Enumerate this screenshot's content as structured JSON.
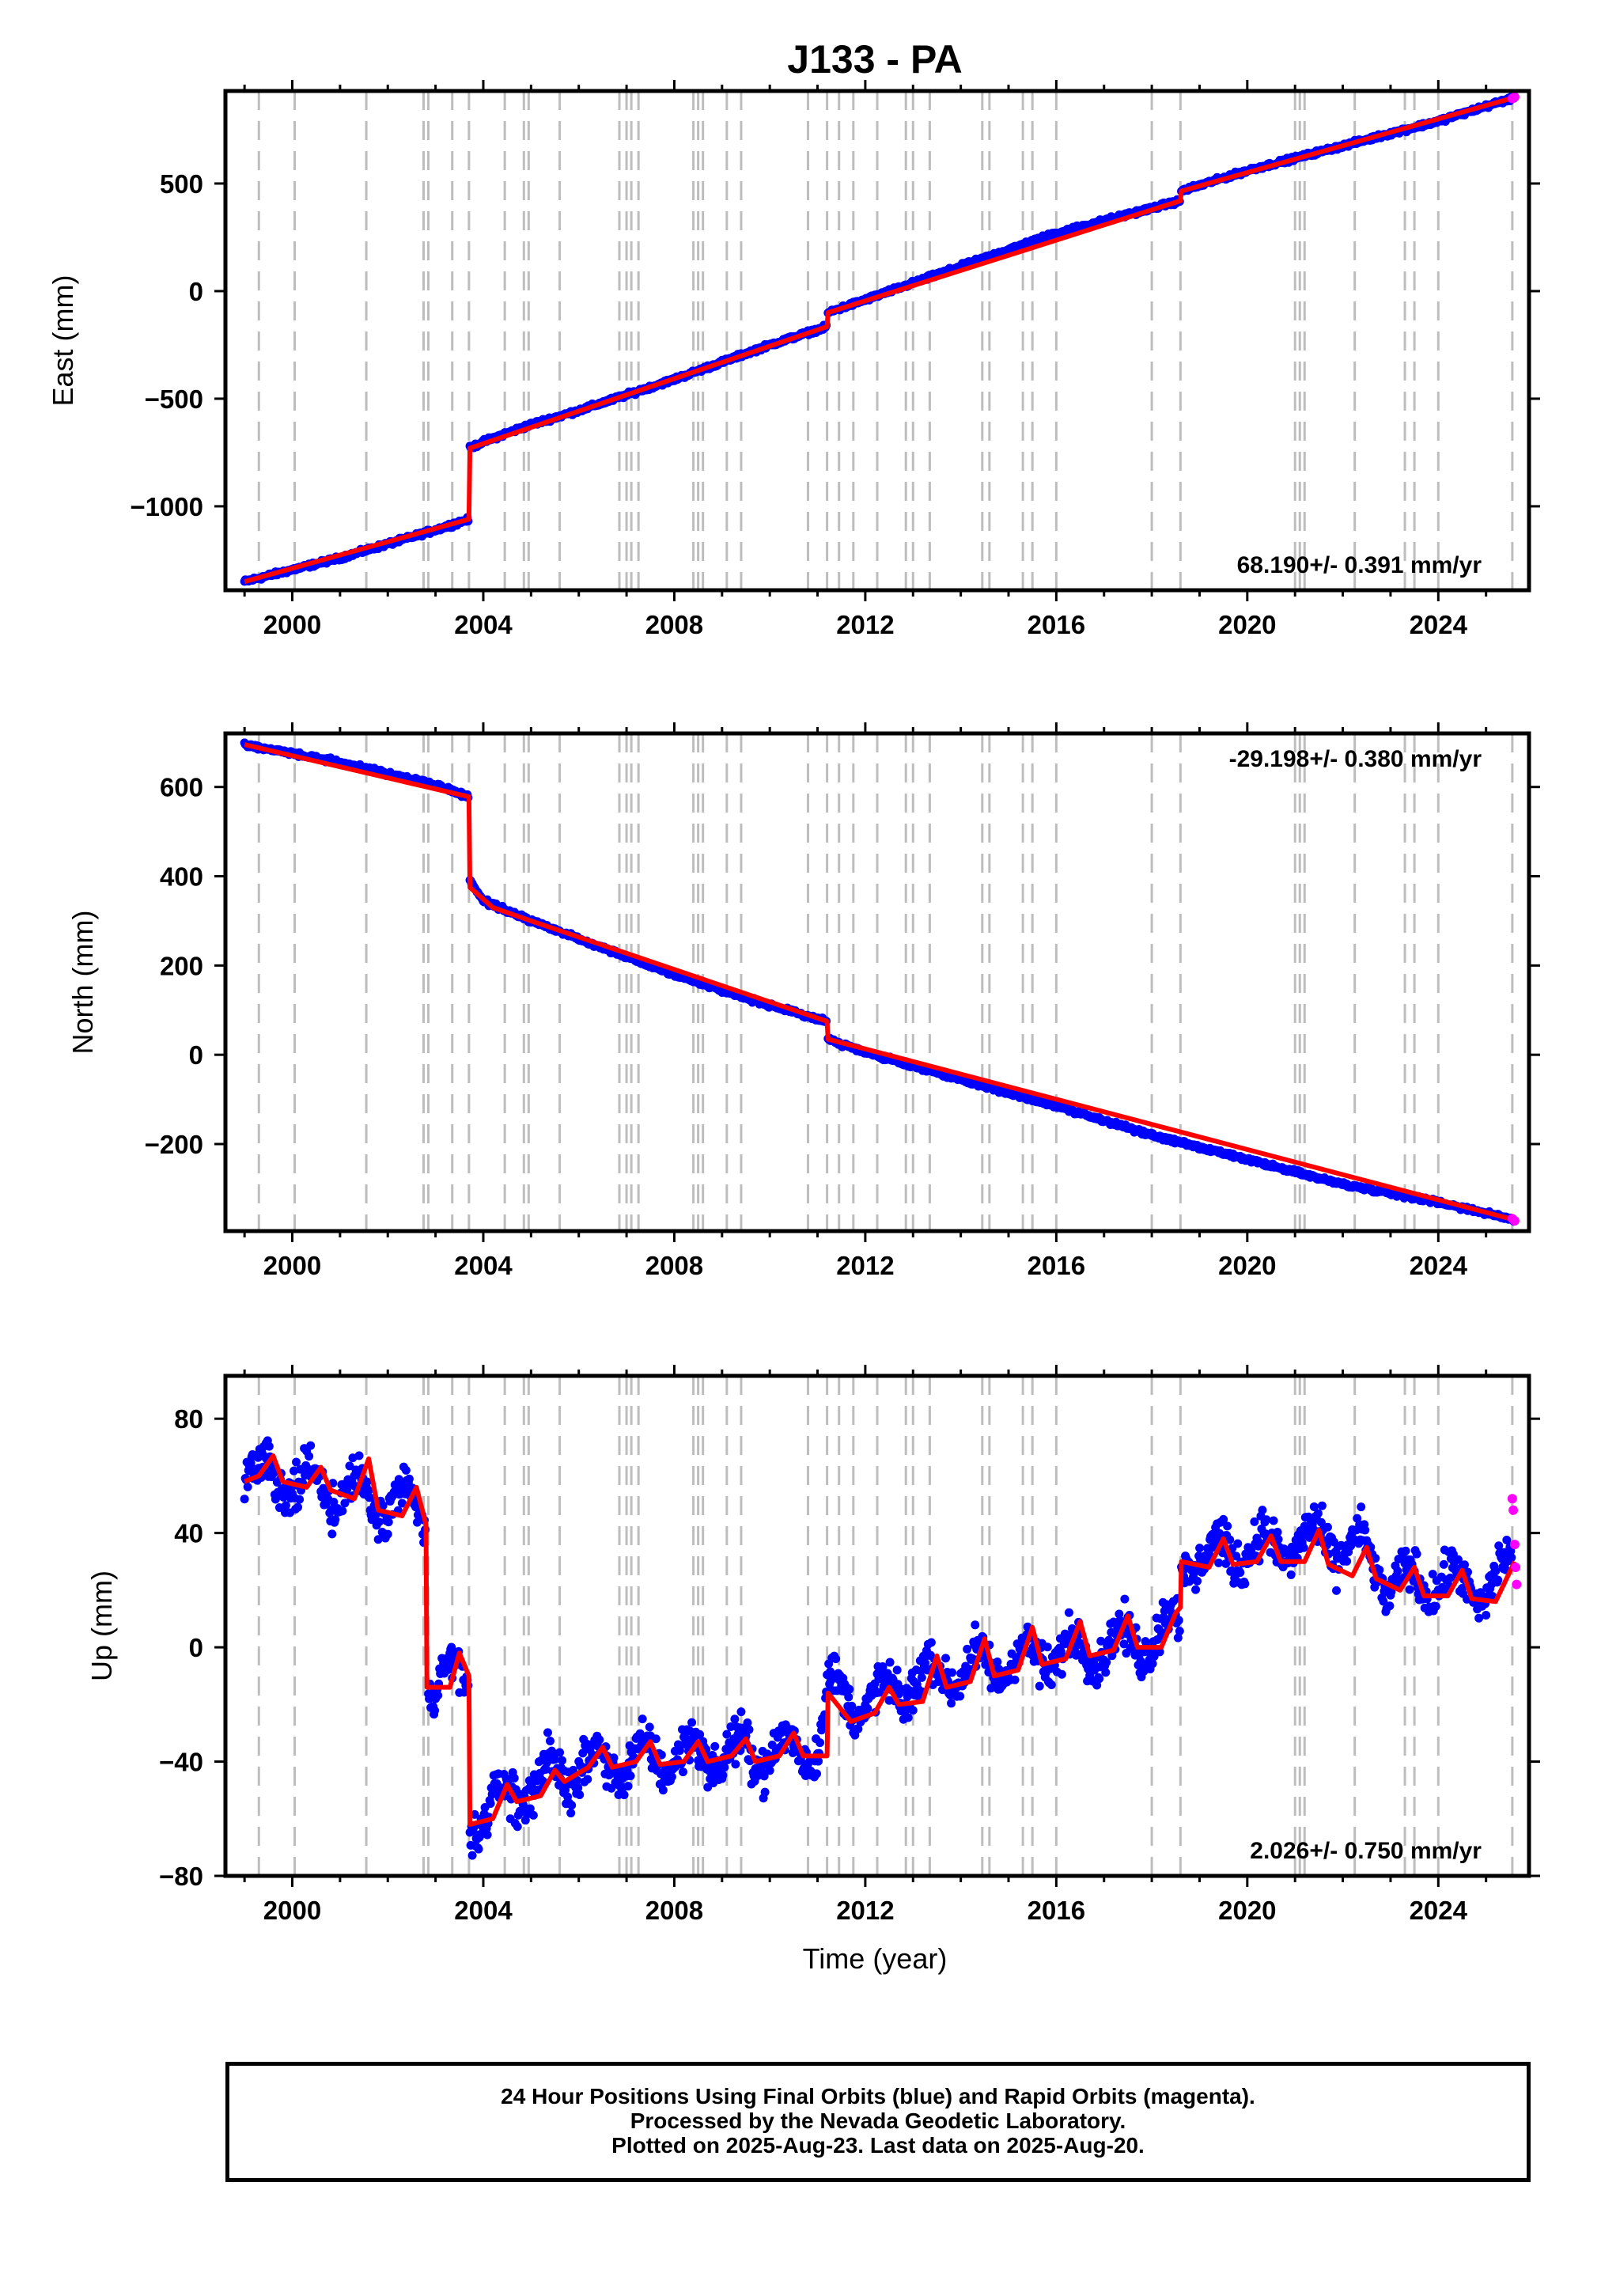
{
  "title": "J133 - PA",
  "xlabel": "Time (year)",
  "caption": [
    "24 Hour Positions Using Final Orbits (blue) and Rapid Orbits (magenta).",
    "Processed by the Nevada Geodetic Laboratory.",
    "Plotted on 2025-Aug-23. Last data on 2025-Aug-20."
  ],
  "colors": {
    "final": "#0000ff",
    "rapid": "#ff00ff",
    "model": "#ff0000",
    "steps": "#bdbdbd",
    "axes": "#000000"
  },
  "chart_data": [
    {
      "type": "scatter",
      "ylabel": "East (mm)",
      "rate_label": "68.190+/- 0.391 mm/yr",
      "rate_position": "bottom-right",
      "xlim": [
        1998.6,
        2025.9
      ],
      "ylim": [
        -1390,
        930
      ],
      "xticks": [
        2000,
        2004,
        2008,
        2012,
        2016,
        2020,
        2024
      ],
      "yticks": [
        -1000,
        -500,
        0,
        500
      ],
      "ytick_labels": [
        "−1000",
        "−500",
        "0",
        "500"
      ],
      "grid": false,
      "series": [
        {
          "name": "Final Orbits",
          "x": [
            1999.0,
            2001.0,
            2003.0,
            2003.7,
            2003.72,
            2004.0,
            2005.0,
            2006.0,
            2008.0,
            2010.0,
            2011.2,
            2011.22,
            2012.0,
            2014.0,
            2016.0,
            2018.6,
            2018.62,
            2020.0,
            2022.0,
            2024.0,
            2025.6
          ],
          "values": [
            -1350,
            -1240,
            -1110,
            -1060,
            -730,
            -700,
            -620,
            -555,
            -410,
            -250,
            -165,
            -100,
            -40,
            115,
            270,
            420,
            465,
            560,
            675,
            790,
            900
          ]
        },
        {
          "name": "Rapid Orbits",
          "x": [
            2025.55,
            2025.6
          ],
          "values": [
            895,
            902
          ]
        }
      ],
      "model": {
        "x": [
          1999.0,
          2003.7,
          2003.72,
          2011.2,
          2011.22,
          2018.6,
          2018.62,
          2025.6
        ],
        "values": [
          -1350,
          -1060,
          -730,
          -165,
          -100,
          420,
          465,
          900
        ]
      },
      "steps": [
        1999.3,
        2000.05,
        2001.55,
        2002.75,
        2002.85,
        2003.35,
        2003.7,
        2004.45,
        2004.85,
        2004.95,
        2005.6,
        2006.85,
        2007.0,
        2007.1,
        2007.25,
        2008.4,
        2008.5,
        2008.6,
        2009.1,
        2009.4,
        2010.8,
        2011.2,
        2011.45,
        2011.75,
        2012.25,
        2012.85,
        2013.0,
        2013.35,
        2014.45,
        2014.6,
        2015.3,
        2015.5,
        2016.0,
        2018.0,
        2018.6,
        2021.0,
        2021.1,
        2021.2,
        2022.25,
        2023.3,
        2023.5,
        2024.0,
        2025.55
      ]
    },
    {
      "type": "scatter",
      "ylabel": "North (mm)",
      "rate_label": "-29.198+/- 0.380 mm/yr",
      "rate_position": "top-right",
      "xlim": [
        1998.6,
        2025.9
      ],
      "ylim": [
        -395,
        720
      ],
      "xticks": [
        2000,
        2004,
        2008,
        2012,
        2016,
        2020,
        2024
      ],
      "yticks": [
        -200,
        0,
        200,
        400,
        600
      ],
      "ytick_labels": [
        "−200",
        "0",
        "200",
        "400",
        "600"
      ],
      "grid": false,
      "series": [
        {
          "name": "Final Orbits",
          "x": [
            1999.0,
            2001.0,
            2003.0,
            2003.7,
            2003.72,
            2004.0,
            2005.0,
            2006.0,
            2008.0,
            2010.0,
            2011.2,
            2011.22,
            2012.0,
            2014.0,
            2016.0,
            2018.0,
            2020.0,
            2022.0,
            2024.0,
            2025.6
          ],
          "values": [
            695,
            655,
            605,
            578,
            390,
            345,
            300,
            260,
            180,
            110,
            75,
            35,
            5,
            -55,
            -115,
            -180,
            -235,
            -290,
            -330,
            -370
          ]
        },
        {
          "name": "Rapid Orbits",
          "x": [
            2025.55,
            2025.6
          ],
          "values": [
            -367,
            -372
          ]
        }
      ],
      "model": {
        "x": [
          1999.0,
          2003.7,
          2003.72,
          2004.2,
          2005.0,
          2011.2,
          2011.22,
          2025.6
        ],
        "values": [
          695,
          578,
          375,
          330,
          300,
          75,
          35,
          -370
        ]
      },
      "steps": [
        1999.3,
        2000.05,
        2001.55,
        2002.75,
        2002.85,
        2003.35,
        2003.7,
        2004.45,
        2004.85,
        2004.95,
        2005.6,
        2006.85,
        2007.0,
        2007.1,
        2007.25,
        2008.4,
        2008.5,
        2008.6,
        2009.1,
        2009.4,
        2010.8,
        2011.2,
        2011.45,
        2011.75,
        2012.25,
        2012.85,
        2013.0,
        2013.35,
        2014.45,
        2014.6,
        2015.3,
        2015.5,
        2016.0,
        2018.0,
        2018.6,
        2021.0,
        2021.1,
        2021.2,
        2022.25,
        2023.3,
        2023.5,
        2024.0,
        2025.55
      ]
    },
    {
      "type": "scatter",
      "ylabel": "Up (mm)",
      "rate_label": "2.026+/- 0.750 mm/yr",
      "rate_position": "bottom-right",
      "xlim": [
        1998.6,
        2025.9
      ],
      "ylim": [
        -80,
        95
      ],
      "xticks": [
        2000,
        2004,
        2008,
        2012,
        2016,
        2020,
        2024
      ],
      "yticks": [
        -80,
        -40,
        0,
        40,
        80
      ],
      "ytick_labels": [
        "−80",
        "−40",
        "0",
        "40",
        "80"
      ],
      "grid": false,
      "series": [
        {
          "name": "Final Orbits",
          "x": [
            1999.0,
            2000.0,
            2001.0,
            2002.0,
            2002.8,
            2002.85,
            2003.5,
            2003.7,
            2003.72,
            2004.5,
            2005.0,
            2006.0,
            2008.0,
            2010.0,
            2011.0,
            2011.2,
            2012.0,
            2013.0,
            2014.0,
            2016.0,
            2018.0,
            2018.6,
            2018.62,
            2019.5,
            2020.5,
            2021.5,
            2022.5,
            2023.0,
            2024.0,
            2025.0,
            2025.55
          ],
          "values": [
            62,
            58,
            55,
            52,
            48,
            -15,
            -10,
            -12,
            -63,
            -52,
            -48,
            -42,
            -38,
            -37,
            -35,
            -15,
            -20,
            -12,
            -8,
            -2,
            3,
            10,
            30,
            33,
            35,
            38,
            33,
            22,
            23,
            20,
            28
          ]
        },
        {
          "name": "Rapid Orbits",
          "x": [
            2025.55,
            2025.57,
            2025.6,
            2025.62,
            2025.64
          ],
          "values": [
            52,
            48,
            36,
            28,
            22
          ]
        }
      ],
      "model": {
        "x": [
          1999.0,
          1999.3,
          1999.6,
          1999.8,
          2000.3,
          2000.6,
          2000.8,
          2001.3,
          2001.6,
          2001.8,
          2002.3,
          2002.6,
          2002.8,
          2002.82,
          2003.3,
          2003.5,
          2003.7,
          2003.72,
          2004.2,
          2004.5,
          2004.7,
          2005.2,
          2005.5,
          2005.7,
          2006.2,
          2006.5,
          2006.7,
          2007.2,
          2007.5,
          2007.7,
          2008.2,
          2008.5,
          2008.7,
          2009.2,
          2009.5,
          2009.7,
          2010.2,
          2010.5,
          2010.7,
          2011.2,
          2011.22,
          2011.7,
          2012.2,
          2012.5,
          2012.7,
          2013.2,
          2013.5,
          2013.7,
          2014.2,
          2014.5,
          2014.7,
          2015.2,
          2015.5,
          2015.7,
          2016.2,
          2016.5,
          2016.7,
          2017.2,
          2017.5,
          2017.7,
          2018.2,
          2018.5,
          2018.6,
          2018.62,
          2019.2,
          2019.5,
          2019.7,
          2020.2,
          2020.5,
          2020.7,
          2021.2,
          2021.5,
          2021.7,
          2022.2,
          2022.5,
          2022.7,
          2023.2,
          2023.5,
          2023.7,
          2024.2,
          2024.5,
          2024.7,
          2025.2,
          2025.6
        ],
        "values": [
          58,
          60,
          67,
          58,
          56,
          63,
          55,
          52,
          66,
          48,
          46,
          56,
          43,
          -14,
          -14,
          -2,
          -10,
          -62,
          -60,
          -48,
          -54,
          -52,
          -43,
          -47,
          -42,
          -35,
          -42,
          -40,
          -33,
          -41,
          -40,
          -33,
          -40,
          -38,
          -32,
          -40,
          -38,
          -30,
          -38,
          -38,
          -16,
          -26,
          -23,
          -14,
          -20,
          -19,
          -3,
          -14,
          -12,
          3,
          -10,
          -8,
          7,
          -6,
          -4,
          9,
          -3,
          -1,
          11,
          0,
          0,
          12,
          14,
          30,
          28,
          38,
          29,
          30,
          39,
          30,
          30,
          41,
          29,
          25,
          35,
          24,
          20,
          28,
          18,
          18,
          27,
          17,
          16,
          30
        ]
      },
      "steps": [
        1999.3,
        2000.05,
        2001.55,
        2002.75,
        2002.85,
        2003.35,
        2003.7,
        2004.45,
        2004.85,
        2004.95,
        2005.6,
        2006.85,
        2007.0,
        2007.1,
        2007.25,
        2008.4,
        2008.5,
        2008.6,
        2009.1,
        2009.4,
        2010.8,
        2011.2,
        2011.45,
        2011.75,
        2012.25,
        2012.85,
        2013.0,
        2013.35,
        2014.45,
        2014.6,
        2015.3,
        2015.5,
        2016.0,
        2018.0,
        2018.6,
        2021.0,
        2021.1,
        2021.2,
        2022.25,
        2023.3,
        2023.5,
        2024.0,
        2025.55
      ]
    }
  ]
}
